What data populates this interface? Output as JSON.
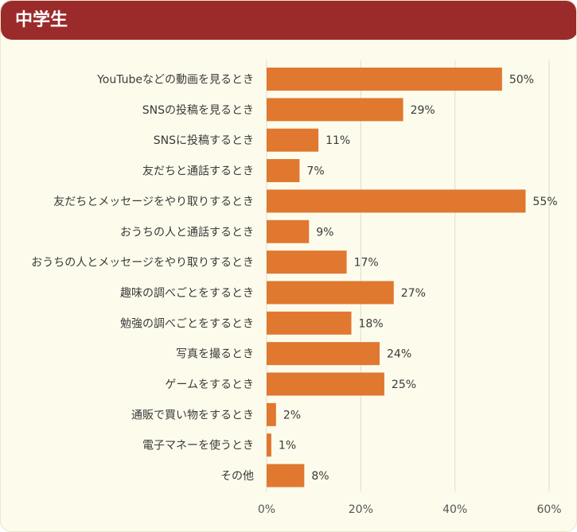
{
  "header": {
    "title": "中学生"
  },
  "colors": {
    "bar": "#e07830",
    "header": "#9b2b2b",
    "panel": "#fdfcec",
    "grid": "#dddccc"
  },
  "chart_data": {
    "type": "bar",
    "orientation": "horizontal",
    "categories": [
      "YouTubeなどの動画を見るとき",
      "SNSの投稿を見るとき",
      "SNSに投稿するとき",
      "友だちと通話するとき",
      "友だちとメッセージをやり取りするとき",
      "おうちの人と通話するとき",
      "おうちの人とメッセージをやり取りするとき",
      "趣味の調べごとをするとき",
      "勉強の調べごとをするとき",
      "写真を撮るとき",
      "ゲームをするとき",
      "通販で買い物をするとき",
      "電子マネーを使うとき",
      "その他"
    ],
    "values": [
      50,
      29,
      11,
      7,
      55,
      9,
      17,
      27,
      18,
      24,
      25,
      2,
      1,
      8
    ],
    "value_labels": [
      "50%",
      "29%",
      "11%",
      "7%",
      "55%",
      "9%",
      "17%",
      "27%",
      "18%",
      "24%",
      "25%",
      "2%",
      "1%",
      "8%"
    ],
    "xlim": [
      0,
      60
    ],
    "xticks": [
      0,
      20,
      40,
      60
    ],
    "xtick_labels": [
      "0%",
      "20%",
      "40%",
      "60%"
    ],
    "grid": true
  }
}
